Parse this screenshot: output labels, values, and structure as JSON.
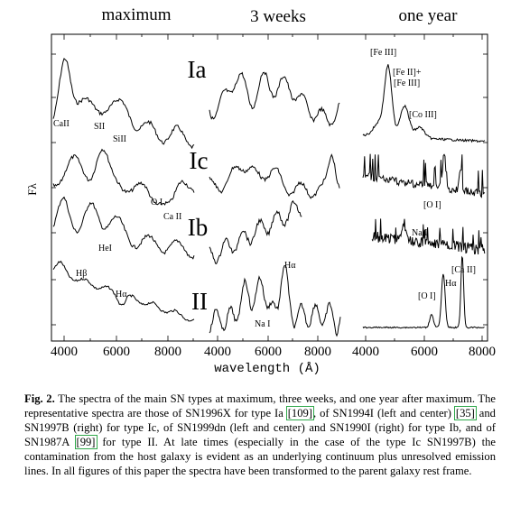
{
  "figure": {
    "column_titles": [
      "maximum",
      "3 weeks",
      "one year"
    ],
    "type_labels": [
      "Ia",
      "Ic",
      "Ib",
      "II"
    ],
    "y_axis_label": "Fλ",
    "x_axis_label": "wavelength (Å)",
    "panels": [
      {
        "x_ticks": [
          "4000",
          "6000",
          "8000"
        ],
        "xlim": [
          3600,
          9200
        ]
      },
      {
        "x_ticks": [
          "4000",
          "6000",
          "8000"
        ],
        "xlim": [
          3600,
          9200
        ]
      },
      {
        "x_ticks": [
          "4000",
          "6000",
          "8000"
        ],
        "xlim": [
          3600,
          8000
        ]
      }
    ],
    "line_annotations": {
      "caii": "CaII",
      "sii": "SII",
      "siii": "SiII",
      "oi_ic": "O I",
      "caii_ic": "Ca II",
      "hei": "HeI",
      "hbeta": "Hβ",
      "halpha_max": "Hα",
      "halpha_3w": "Hα",
      "nai_3w": "Na I",
      "feiii_1": "[Fe III]",
      "feii_feiii_a": "[Fe II]+",
      "feii_feiii_b": "[Fe III]",
      "coiii": "[Co III]",
      "oi_late": "[O I]",
      "nai_late": "Na I",
      "caii_late": "[Ca II]",
      "halpha_late": "Hα",
      "oi_late_ii": "[O I]"
    }
  },
  "caption": {
    "label": "Fig. 2.",
    "text_1": " The spectra of the main SN types at maximum, three weeks, and one year after maximum. The representative spectra are those of SN1996X for type Ia ",
    "ref_1": "[109]",
    "text_2": ", of SN1994I (left and center) ",
    "ref_2": "[35]",
    "text_3": " and SN1997B (right) for type Ic, of SN1999dn (left and center) and SN1990I (right) for type Ib, and of SN1987A ",
    "ref_3": "[99]",
    "text_4": " for type II. At late times (especially in the case of the type Ic SN1997B) the contamination from the host galaxy is evident as an underlying continuum plus unresolved emission lines. In all figures of this paper the spectra have been transformed to the parent galaxy rest frame."
  }
}
